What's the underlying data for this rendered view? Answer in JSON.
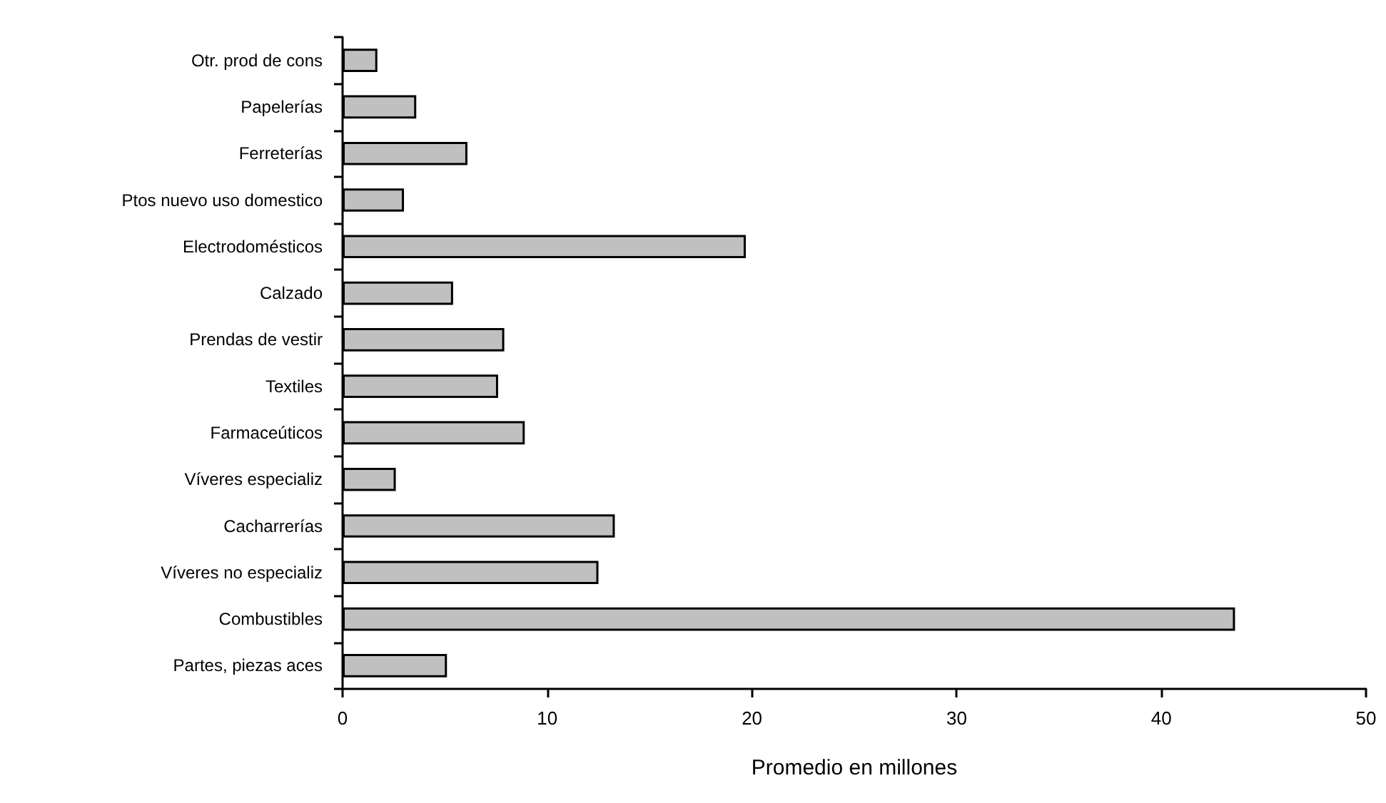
{
  "chart_data": {
    "type": "bar",
    "orientation": "horizontal",
    "xlabel": "Promedio en millones",
    "categories": [
      "Otr. prod de cons",
      "Papelerías",
      "Ferreterías",
      "Ptos nuevo uso domestico",
      "Electrodomésticos",
      "Calzado",
      "Prendas de vestir",
      "Textiles",
      "Farmaceúticos",
      "Víveres especializ",
      "Cacharrerías",
      "Víveres no especializ",
      "Combustibles",
      "Partes, piezas aces"
    ],
    "values": [
      1.7,
      3.6,
      6.1,
      3.0,
      19.7,
      5.4,
      7.9,
      7.6,
      8.9,
      2.6,
      13.3,
      12.5,
      43.6,
      5.1
    ],
    "color": "#c0c0c0",
    "xlim": [
      0,
      50
    ],
    "xticks": [
      0,
      10,
      20,
      30,
      40,
      50
    ]
  }
}
